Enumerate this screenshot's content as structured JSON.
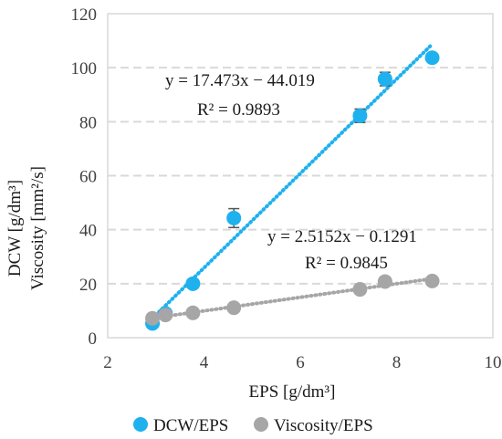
{
  "chart_data": {
    "type": "scatter",
    "xlabel": "EPS [g/dm³]",
    "ylabel": [
      "DCW [g/dm³]",
      "Viscosity [mm²/s]"
    ],
    "xlim": [
      2,
      10
    ],
    "ylim": [
      0,
      120
    ],
    "xticks": [
      "2",
      "4",
      "6",
      "8",
      "10"
    ],
    "yticks": [
      "0",
      "20",
      "40",
      "60",
      "80",
      "100",
      "120"
    ],
    "grid": "horizontal-dashed",
    "legend_position": "bottom",
    "series": [
      {
        "name": "DCW/EPS",
        "color": "#1eb1ee",
        "points": [
          {
            "x": 2.93,
            "y": 5.3,
            "err": 1.0
          },
          {
            "x": 3.2,
            "y": 9.0,
            "err": 1.0
          },
          {
            "x": 3.77,
            "y": 20.0,
            "err": 1.2
          },
          {
            "x": 4.62,
            "y": 44.3,
            "err": 3.5
          },
          {
            "x": 7.24,
            "y": 82.2,
            "err": 2.5
          },
          {
            "x": 7.76,
            "y": 95.8,
            "err": 2.5
          },
          {
            "x": 8.74,
            "y": 103.7,
            "err": 1.0
          }
        ],
        "trendline": {
          "slope": 17.473,
          "intercept": -44.019,
          "x_range": [
            2.93,
            8.74
          ]
        },
        "equation": "y = 17.473x − 44.019",
        "r2": "R² = 0.9893"
      },
      {
        "name": "Viscosity/EPS",
        "color": "#a6a6a6",
        "points": [
          {
            "x": 2.93,
            "y": 7.2
          },
          {
            "x": 3.2,
            "y": 8.4
          },
          {
            "x": 3.77,
            "y": 9.2
          },
          {
            "x": 4.62,
            "y": 11.1
          },
          {
            "x": 7.24,
            "y": 17.9
          },
          {
            "x": 7.76,
            "y": 20.8
          },
          {
            "x": 8.74,
            "y": 21.0
          }
        ],
        "trendline": {
          "slope": 2.5152,
          "intercept": -0.1291,
          "x_range": [
            2.93,
            8.74
          ]
        },
        "equation": "y = 2.5152x − 0.1291",
        "r2": "R² = 0.9845"
      }
    ]
  }
}
